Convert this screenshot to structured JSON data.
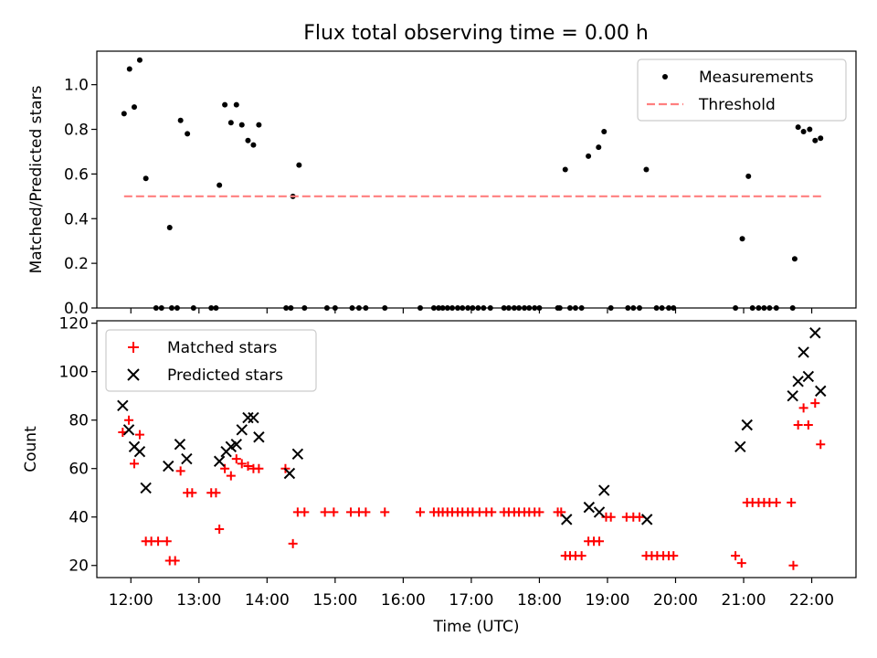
{
  "title": "Flux total observing time = 0.00 h",
  "chart_data": [
    {
      "type": "scatter",
      "title": "Flux total observing time = 0.00 h",
      "xlabel": "",
      "ylabel": "Matched/Predicted stars",
      "xlim": [
        11.5,
        22.65
      ],
      "ylim": [
        0.0,
        1.15
      ],
      "yticks": [
        0.0,
        0.2,
        0.4,
        0.6,
        0.8,
        1.0
      ],
      "legend_position": "top-right",
      "legend": [
        "Measurements",
        "Threshold"
      ],
      "series": [
        {
          "name": "Measurements",
          "marker": "dot",
          "color": "#000000",
          "points": [
            [
              11.9,
              0.87
            ],
            [
              11.98,
              1.07
            ],
            [
              12.05,
              0.9
            ],
            [
              12.13,
              1.11
            ],
            [
              12.22,
              0.58
            ],
            [
              12.37,
              0.0
            ],
            [
              12.45,
              0.0
            ],
            [
              12.57,
              0.36
            ],
            [
              12.6,
              0.0
            ],
            [
              12.68,
              0.0
            ],
            [
              12.73,
              0.84
            ],
            [
              12.83,
              0.78
            ],
            [
              12.92,
              0.0
            ],
            [
              13.18,
              0.0
            ],
            [
              13.25,
              0.0
            ],
            [
              13.3,
              0.55
            ],
            [
              13.38,
              0.91
            ],
            [
              13.47,
              0.83
            ],
            [
              13.55,
              0.91
            ],
            [
              13.63,
              0.82
            ],
            [
              13.72,
              0.75
            ],
            [
              13.8,
              0.73
            ],
            [
              13.88,
              0.82
            ],
            [
              14.28,
              0.0
            ],
            [
              14.35,
              0.0
            ],
            [
              14.38,
              0.5
            ],
            [
              14.47,
              0.64
            ],
            [
              14.55,
              0.0
            ],
            [
              14.88,
              0.0
            ],
            [
              15.0,
              0.0
            ],
            [
              15.25,
              0.0
            ],
            [
              15.35,
              0.0
            ],
            [
              15.45,
              0.0
            ],
            [
              15.73,
              0.0
            ],
            [
              16.25,
              0.0
            ],
            [
              16.45,
              0.0
            ],
            [
              16.52,
              0.0
            ],
            [
              16.58,
              0.0
            ],
            [
              16.65,
              0.0
            ],
            [
              16.72,
              0.0
            ],
            [
              16.8,
              0.0
            ],
            [
              16.87,
              0.0
            ],
            [
              16.95,
              0.0
            ],
            [
              17.02,
              0.0
            ],
            [
              17.1,
              0.0
            ],
            [
              17.18,
              0.0
            ],
            [
              17.28,
              0.0
            ],
            [
              17.48,
              0.0
            ],
            [
              17.55,
              0.0
            ],
            [
              17.63,
              0.0
            ],
            [
              17.7,
              0.0
            ],
            [
              17.78,
              0.0
            ],
            [
              17.85,
              0.0
            ],
            [
              17.93,
              0.0
            ],
            [
              18.0,
              0.0
            ],
            [
              18.27,
              0.0
            ],
            [
              18.3,
              0.0
            ],
            [
              18.38,
              0.62
            ],
            [
              18.45,
              0.0
            ],
            [
              18.53,
              0.0
            ],
            [
              18.62,
              0.0
            ],
            [
              18.72,
              0.68
            ],
            [
              18.87,
              0.72
            ],
            [
              18.95,
              0.79
            ],
            [
              19.05,
              0.0
            ],
            [
              19.3,
              0.0
            ],
            [
              19.38,
              0.0
            ],
            [
              19.47,
              0.0
            ],
            [
              19.57,
              0.62
            ],
            [
              19.72,
              0.0
            ],
            [
              19.8,
              0.0
            ],
            [
              19.9,
              0.0
            ],
            [
              19.97,
              0.0
            ],
            [
              20.88,
              0.0
            ],
            [
              20.98,
              0.31
            ],
            [
              21.07,
              0.59
            ],
            [
              21.13,
              0.0
            ],
            [
              21.22,
              0.0
            ],
            [
              21.3,
              0.0
            ],
            [
              21.38,
              0.0
            ],
            [
              21.48,
              0.0
            ],
            [
              21.72,
              0.0
            ],
            [
              21.75,
              0.22
            ],
            [
              21.8,
              0.81
            ],
            [
              21.88,
              0.79
            ],
            [
              21.97,
              0.8
            ],
            [
              22.05,
              0.75
            ],
            [
              22.13,
              0.76
            ]
          ]
        },
        {
          "name": "Threshold",
          "style": "dashed",
          "color": "#ff7f7f",
          "x": [
            11.9,
            22.15
          ],
          "y": [
            0.5,
            0.5
          ]
        }
      ]
    },
    {
      "type": "scatter",
      "title": "",
      "xlabel": "Time (UTC)",
      "ylabel": "Count",
      "xlim": [
        11.5,
        22.65
      ],
      "ylim": [
        15,
        121
      ],
      "xticks": [
        12,
        13,
        14,
        15,
        16,
        17,
        18,
        19,
        20,
        21,
        22
      ],
      "xtick_labels": [
        "12:00",
        "13:00",
        "14:00",
        "15:00",
        "16:00",
        "17:00",
        "18:00",
        "19:00",
        "20:00",
        "21:00",
        "22:00"
      ],
      "yticks": [
        20,
        40,
        60,
        80,
        100,
        120
      ],
      "legend_position": "top-left",
      "legend": [
        "Matched stars",
        "Predicted stars"
      ],
      "series": [
        {
          "name": "Matched stars",
          "marker": "plus",
          "color": "#ff0000",
          "points": [
            [
              11.88,
              75
            ],
            [
              11.97,
              80
            ],
            [
              12.05,
              62
            ],
            [
              12.13,
              74
            ],
            [
              12.22,
              30
            ],
            [
              12.3,
              30
            ],
            [
              12.4,
              30
            ],
            [
              12.53,
              30
            ],
            [
              12.57,
              22
            ],
            [
              12.65,
              22
            ],
            [
              12.73,
              59
            ],
            [
              12.83,
              50
            ],
            [
              12.9,
              50
            ],
            [
              13.18,
              50
            ],
            [
              13.25,
              50
            ],
            [
              13.3,
              35
            ],
            [
              13.38,
              60
            ],
            [
              13.47,
              57
            ],
            [
              13.55,
              64
            ],
            [
              13.63,
              62
            ],
            [
              13.72,
              61
            ],
            [
              13.8,
              60
            ],
            [
              13.88,
              60
            ],
            [
              14.27,
              60
            ],
            [
              14.38,
              29
            ],
            [
              14.45,
              42
            ],
            [
              14.55,
              42
            ],
            [
              14.85,
              42
            ],
            [
              14.98,
              42
            ],
            [
              15.23,
              42
            ],
            [
              15.35,
              42
            ],
            [
              15.45,
              42
            ],
            [
              15.73,
              42
            ],
            [
              16.25,
              42
            ],
            [
              16.45,
              42
            ],
            [
              16.52,
              42
            ],
            [
              16.58,
              42
            ],
            [
              16.65,
              42
            ],
            [
              16.72,
              42
            ],
            [
              16.8,
              42
            ],
            [
              16.87,
              42
            ],
            [
              16.95,
              42
            ],
            [
              17.02,
              42
            ],
            [
              17.12,
              42
            ],
            [
              17.22,
              42
            ],
            [
              17.3,
              42
            ],
            [
              17.48,
              42
            ],
            [
              17.55,
              42
            ],
            [
              17.63,
              42
            ],
            [
              17.7,
              42
            ],
            [
              17.78,
              42
            ],
            [
              17.85,
              42
            ],
            [
              17.93,
              42
            ],
            [
              18.0,
              42
            ],
            [
              18.27,
              42
            ],
            [
              18.32,
              42
            ],
            [
              18.38,
              24
            ],
            [
              18.45,
              24
            ],
            [
              18.53,
              24
            ],
            [
              18.62,
              24
            ],
            [
              18.72,
              30
            ],
            [
              18.8,
              30
            ],
            [
              18.88,
              30
            ],
            [
              18.98,
              40
            ],
            [
              19.05,
              40
            ],
            [
              19.28,
              40
            ],
            [
              19.38,
              40
            ],
            [
              19.47,
              40
            ],
            [
              19.57,
              24
            ],
            [
              19.65,
              24
            ],
            [
              19.73,
              24
            ],
            [
              19.82,
              24
            ],
            [
              19.9,
              24
            ],
            [
              19.97,
              24
            ],
            [
              20.88,
              24
            ],
            [
              20.97,
              21
            ],
            [
              21.05,
              46
            ],
            [
              21.13,
              46
            ],
            [
              21.22,
              46
            ],
            [
              21.3,
              46
            ],
            [
              21.38,
              46
            ],
            [
              21.48,
              46
            ],
            [
              21.7,
              46
            ],
            [
              21.73,
              20
            ],
            [
              21.8,
              78
            ],
            [
              21.88,
              85
            ],
            [
              21.95,
              78
            ],
            [
              22.05,
              87
            ],
            [
              22.13,
              70
            ]
          ]
        },
        {
          "name": "Predicted stars",
          "marker": "x",
          "color": "#000000",
          "points": [
            [
              11.88,
              86
            ],
            [
              11.97,
              76
            ],
            [
              12.05,
              69
            ],
            [
              12.13,
              67
            ],
            [
              12.22,
              52
            ],
            [
              12.55,
              61
            ],
            [
              12.72,
              70
            ],
            [
              12.82,
              64
            ],
            [
              13.3,
              63
            ],
            [
              13.4,
              67
            ],
            [
              13.47,
              69
            ],
            [
              13.55,
              70
            ],
            [
              13.63,
              76
            ],
            [
              13.72,
              81
            ],
            [
              13.8,
              81
            ],
            [
              13.88,
              73
            ],
            [
              14.33,
              58
            ],
            [
              14.45,
              66
            ],
            [
              18.4,
              39
            ],
            [
              18.73,
              44
            ],
            [
              18.88,
              42
            ],
            [
              18.95,
              51
            ],
            [
              19.58,
              39
            ],
            [
              20.95,
              69
            ],
            [
              21.05,
              78
            ],
            [
              21.72,
              90
            ],
            [
              21.8,
              96
            ],
            [
              21.88,
              108
            ],
            [
              21.95,
              98
            ],
            [
              22.05,
              116
            ],
            [
              22.13,
              92
            ]
          ]
        }
      ]
    }
  ]
}
